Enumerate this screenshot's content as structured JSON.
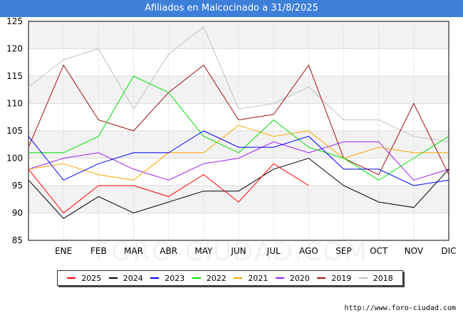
{
  "title": "Afiliados en Malcocinado a 31/8/2025",
  "watermark": "FORO-CIUDAD.COM",
  "footer_url": "http://www.foro-ciudad.com",
  "chart_data": {
    "type": "line",
    "title": "Afiliados en Malcocinado a 31/8/2025",
    "xlabel": "",
    "ylabel": "",
    "categories": [
      "",
      "ENE",
      "FEB",
      "MAR",
      "ABR",
      "MAY",
      "JUN",
      "JUL",
      "AGO",
      "SEP",
      "OCT",
      "NOV",
      "DIC"
    ],
    "ylim": [
      85,
      125
    ],
    "yticks": [
      85,
      90,
      95,
      100,
      105,
      110,
      115,
      120,
      125
    ],
    "grid": true,
    "legend_position": "bottom",
    "series": [
      {
        "name": "2025",
        "color": "#ff0000",
        "values": [
          98,
          90,
          95,
          95,
          93,
          97,
          92,
          99,
          95,
          null,
          null,
          null,
          null
        ]
      },
      {
        "name": "2024",
        "color": "#000000",
        "values": [
          96,
          89,
          93,
          90,
          92,
          94,
          94,
          98,
          100,
          95,
          92,
          91,
          98
        ]
      },
      {
        "name": "2023",
        "color": "#0000ff",
        "values": [
          104,
          96,
          99,
          101,
          101,
          105,
          102,
          102,
          104,
          98,
          98,
          95,
          96
        ]
      },
      {
        "name": "2022",
        "color": "#00e000",
        "values": [
          101,
          101,
          104,
          115,
          112,
          104,
          101,
          107,
          102,
          100,
          96,
          100,
          104
        ]
      },
      {
        "name": "2021",
        "color": "#ffa500",
        "values": [
          98,
          99,
          97,
          96,
          101,
          101,
          106,
          104,
          105,
          100,
          102,
          101,
          101
        ]
      },
      {
        "name": "2020",
        "color": "#a020f0",
        "values": [
          98,
          100,
          101,
          98,
          96,
          99,
          100,
          103,
          101,
          103,
          103,
          96,
          98
        ]
      },
      {
        "name": "2019",
        "color": "#a01010",
        "values": [
          102,
          117,
          107,
          105,
          112,
          117,
          107,
          108,
          117,
          100,
          97,
          110,
          97
        ]
      },
      {
        "name": "2018",
        "color": "#c0c0c0",
        "values": [
          113,
          118,
          120,
          109,
          119,
          124,
          109,
          110,
          113,
          107,
          107,
          104,
          103
        ]
      }
    ]
  }
}
